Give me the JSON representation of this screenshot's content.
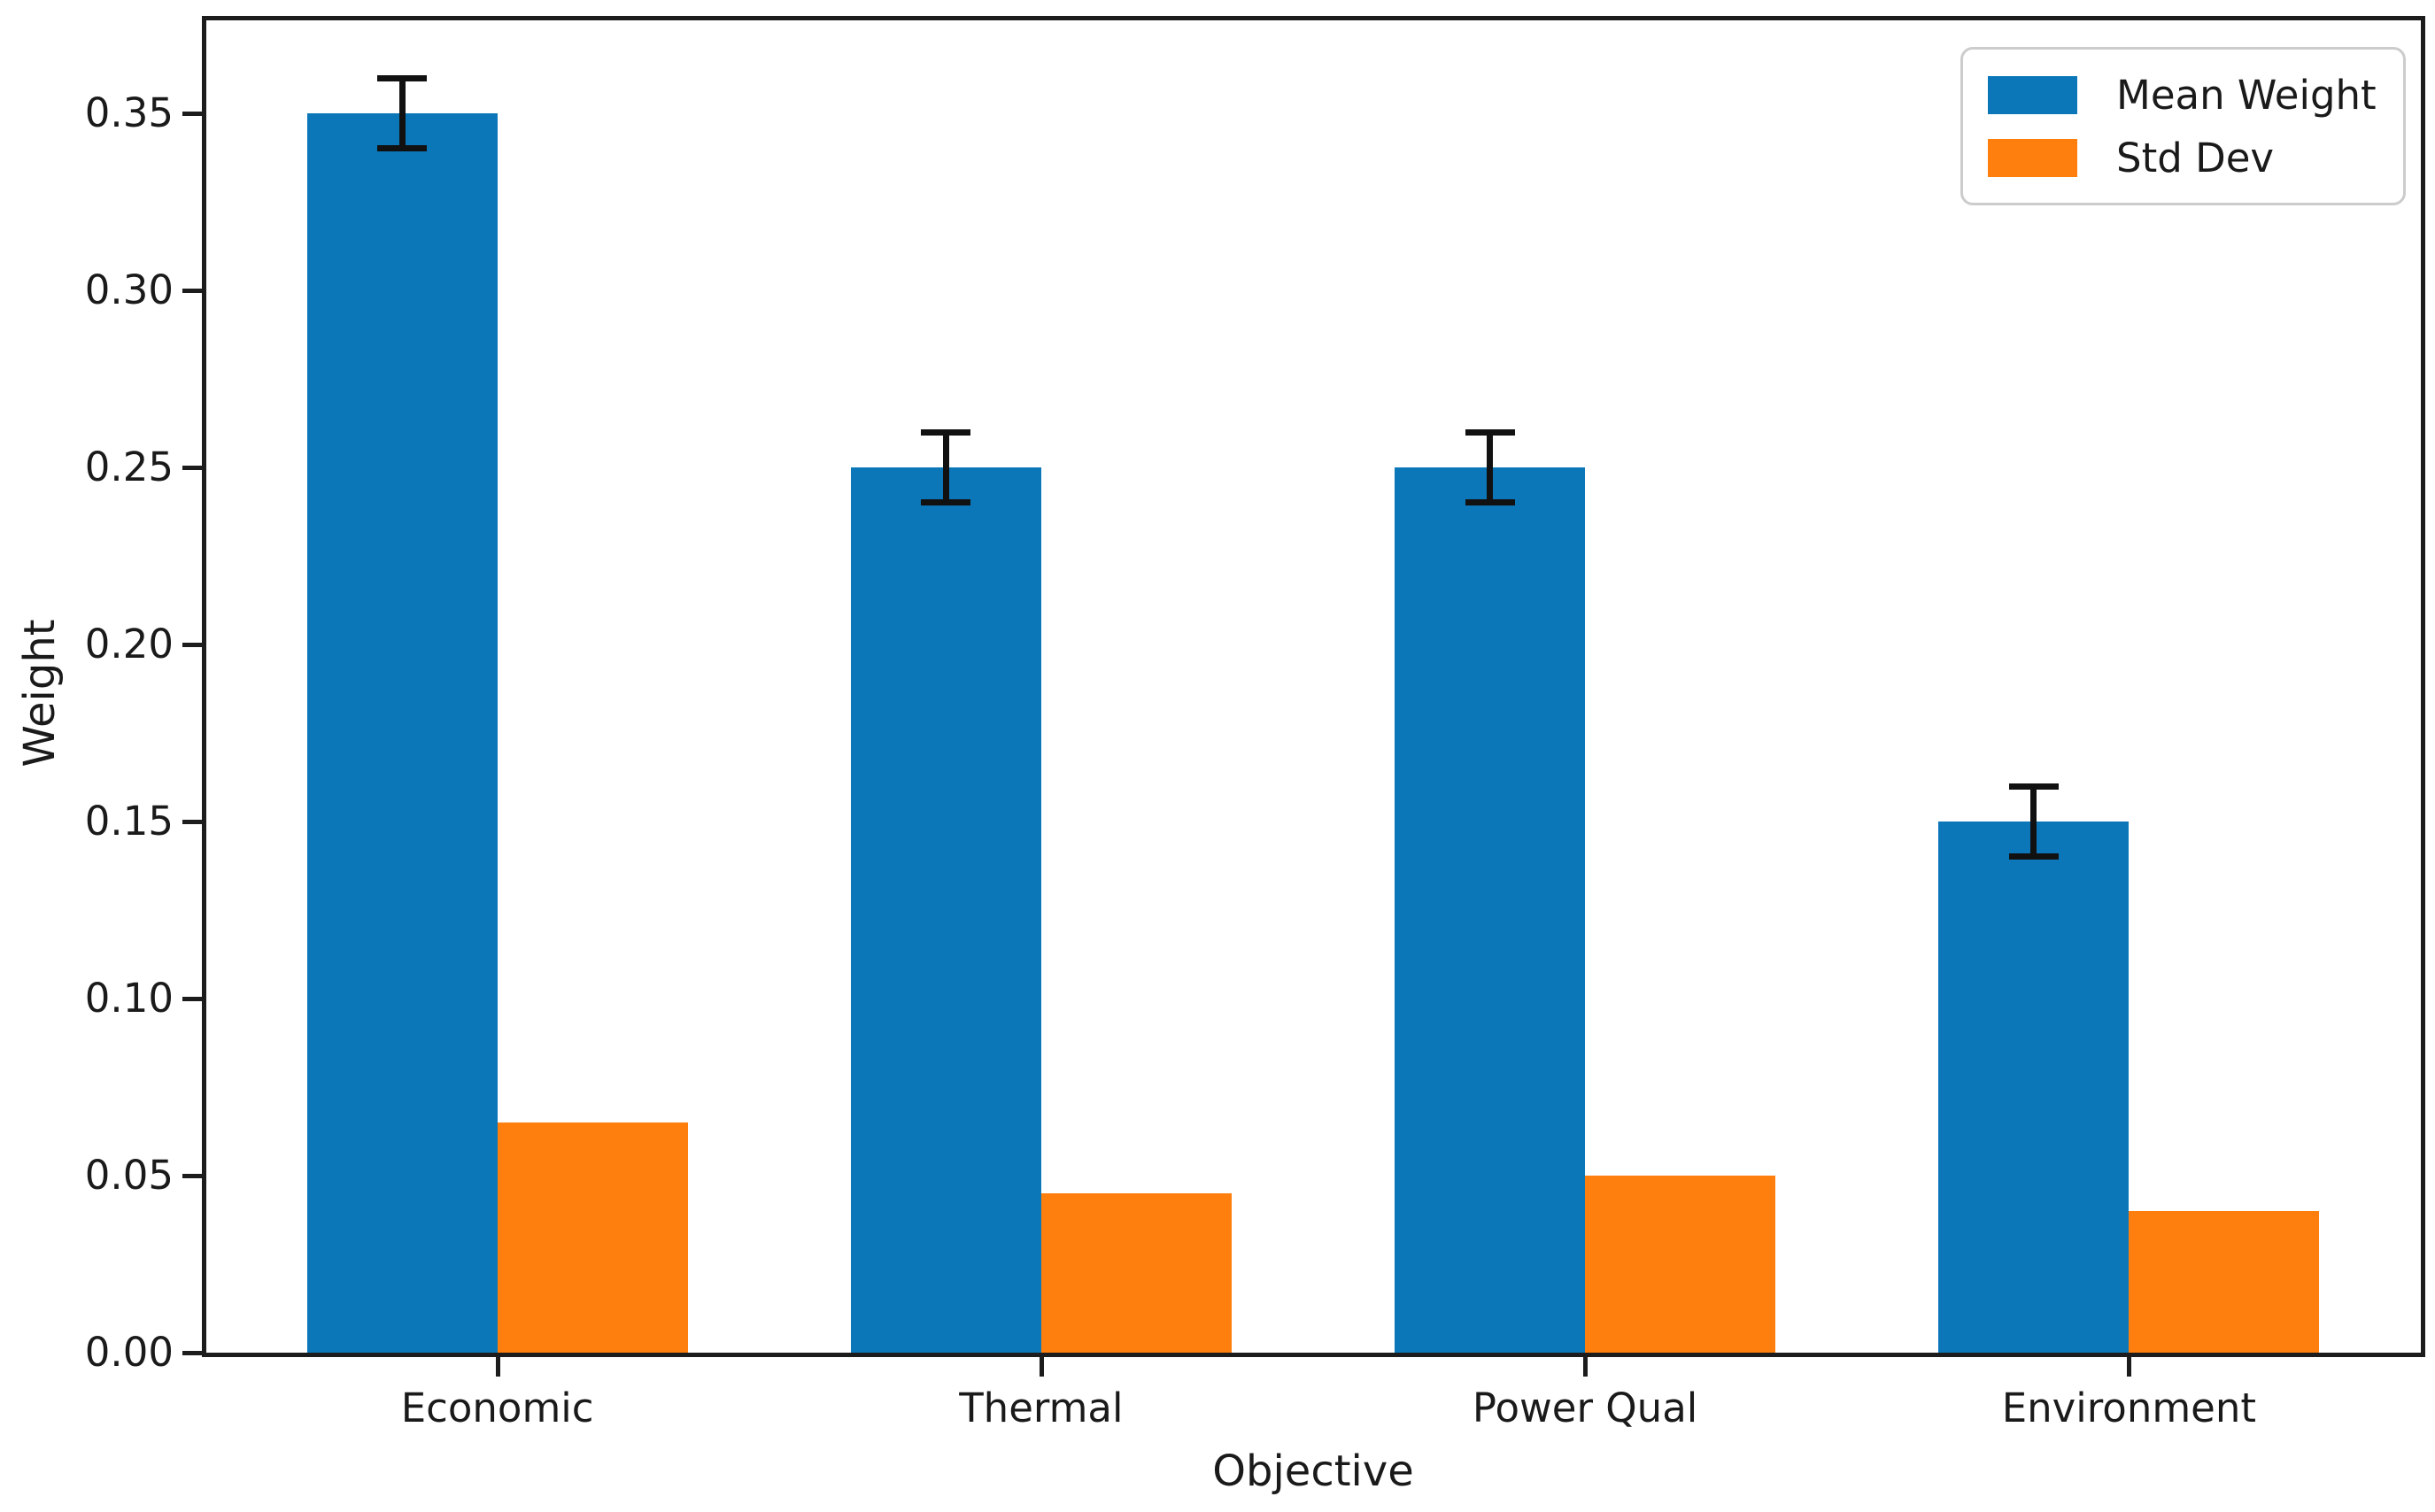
{
  "chart_data": {
    "type": "bar",
    "title": "",
    "xlabel": "Objective",
    "ylabel": "Weight",
    "categories": [
      "Economic",
      "Thermal",
      "Power Qual",
      "Environment"
    ],
    "series": [
      {
        "name": "Mean Weight",
        "color": "#0b77b9",
        "values": [
          0.35,
          0.25,
          0.25,
          0.15
        ],
        "error_bars": [
          0.01,
          0.01,
          0.01,
          0.01
        ]
      },
      {
        "name": "Std Dev",
        "color": "#ff7f0e",
        "values": [
          0.065,
          0.045,
          0.05,
          0.04
        ]
      }
    ],
    "ylim": [
      0,
      0.376
    ],
    "yticks": [
      "0.00",
      "0.05",
      "0.10",
      "0.15",
      "0.20",
      "0.25",
      "0.30",
      "0.35"
    ],
    "grid": false,
    "legend_position": "upper right",
    "error_bar_color": "#111111",
    "axis_color": "#1c1c1c"
  }
}
